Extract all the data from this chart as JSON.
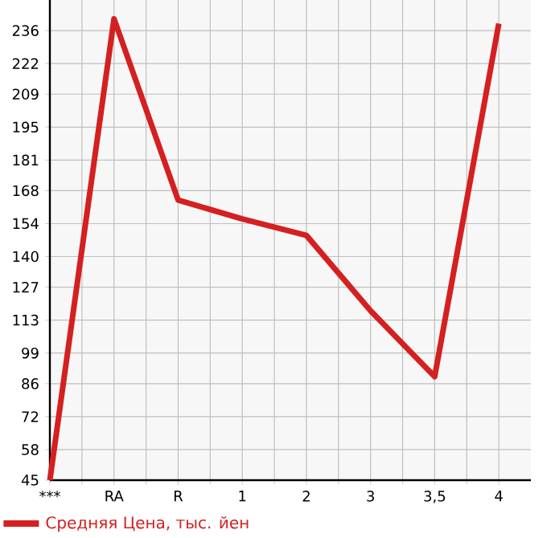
{
  "chart_data": {
    "type": "line",
    "categories": [
      "***",
      "RA",
      "R",
      "1",
      "2",
      "3",
      "3,5",
      "4"
    ],
    "series": [
      {
        "name": "Средняя Цена, тыс. йен",
        "color": "#d42020",
        "values": [
          45,
          241,
          164,
          156,
          149,
          117,
          89,
          239
        ]
      }
    ],
    "ylim": [
      45,
      249
    ],
    "yticks": [
      45,
      58,
      72,
      86,
      99,
      113,
      127,
      140,
      154,
      168,
      181,
      195,
      209,
      222,
      236
    ],
    "grid": true,
    "legend": "bottom left",
    "marker": "none",
    "line_style": "solid"
  }
}
